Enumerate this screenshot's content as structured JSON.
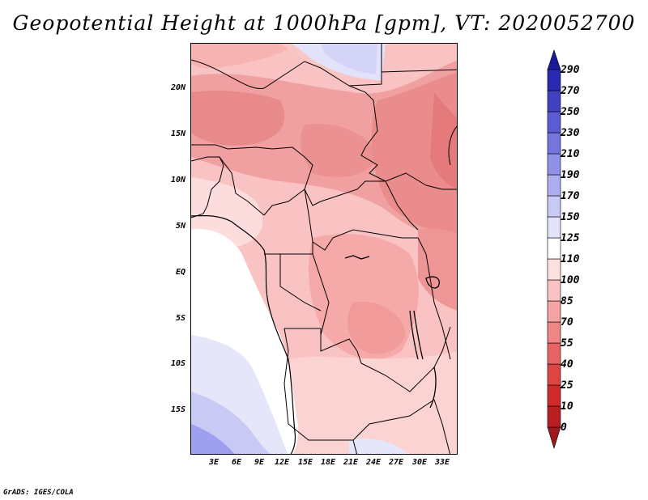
{
  "title": "Geopotential Height at 1000hPa [gpm], VT: 2020052700",
  "footer": "GrADS: IGES/COLA",
  "map": {
    "region": "Central Africa",
    "lat_labels": [
      "20N",
      "15N",
      "10N",
      "5N",
      "EQ",
      "5S",
      "10S",
      "15S"
    ],
    "lon_labels": [
      "3E",
      "6E",
      "9E",
      "12E",
      "15E",
      "18E",
      "21E",
      "24E",
      "27E",
      "30E",
      "33E"
    ]
  },
  "colorbar": {
    "levels": [
      "0",
      "10",
      "25",
      "40",
      "55",
      "70",
      "85",
      "100",
      "110",
      "125",
      "150",
      "170",
      "190",
      "210",
      "230",
      "250",
      "270",
      "290"
    ],
    "colors": [
      "#a0181c",
      "#b81f22",
      "#cf2b2b",
      "#dd4444",
      "#e86464",
      "#ef8585",
      "#f5a3a3",
      "#f9c3c3",
      "#fde1e1",
      "#ffffff",
      "#e3e3fb",
      "#c9c9f6",
      "#adadf0",
      "#9191e9",
      "#7575df",
      "#5b5bd2",
      "#4141c2",
      "#2a2ab0",
      "#1a1a9c"
    ]
  }
}
